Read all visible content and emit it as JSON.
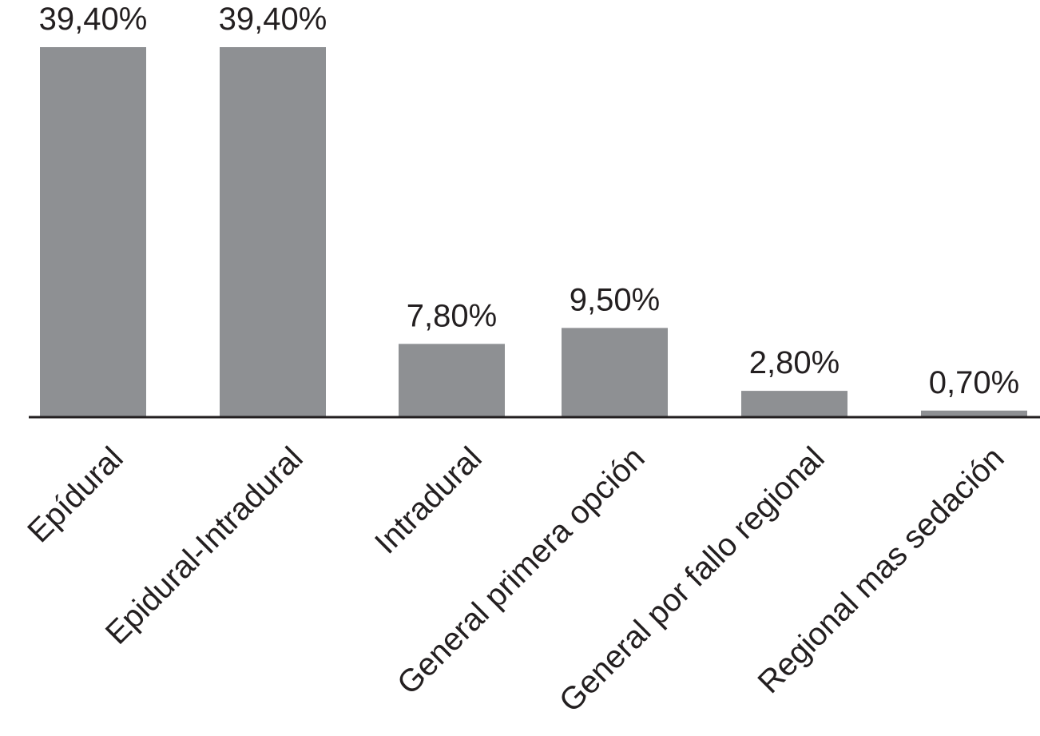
{
  "chart_data": {
    "type": "bar",
    "categories": [
      "Epídural",
      "Epidural-Intradural",
      "Intradural",
      "General primera opción",
      "General por fallo regional",
      "Regional mas sedación"
    ],
    "values": [
      39.4,
      39.4,
      7.8,
      9.5,
      2.8,
      0.7
    ],
    "value_labels": [
      "39,40%",
      "39,40%",
      "7,80%",
      "9,50%",
      "2,80%",
      "0,70%"
    ],
    "title": "",
    "xlabel": "",
    "ylabel": "",
    "ylim": [
      0,
      39.4
    ],
    "grid": false,
    "legend": "none",
    "bar_color": "#8e9093",
    "axis_color": "#231f20",
    "text_color": "#231f20"
  }
}
